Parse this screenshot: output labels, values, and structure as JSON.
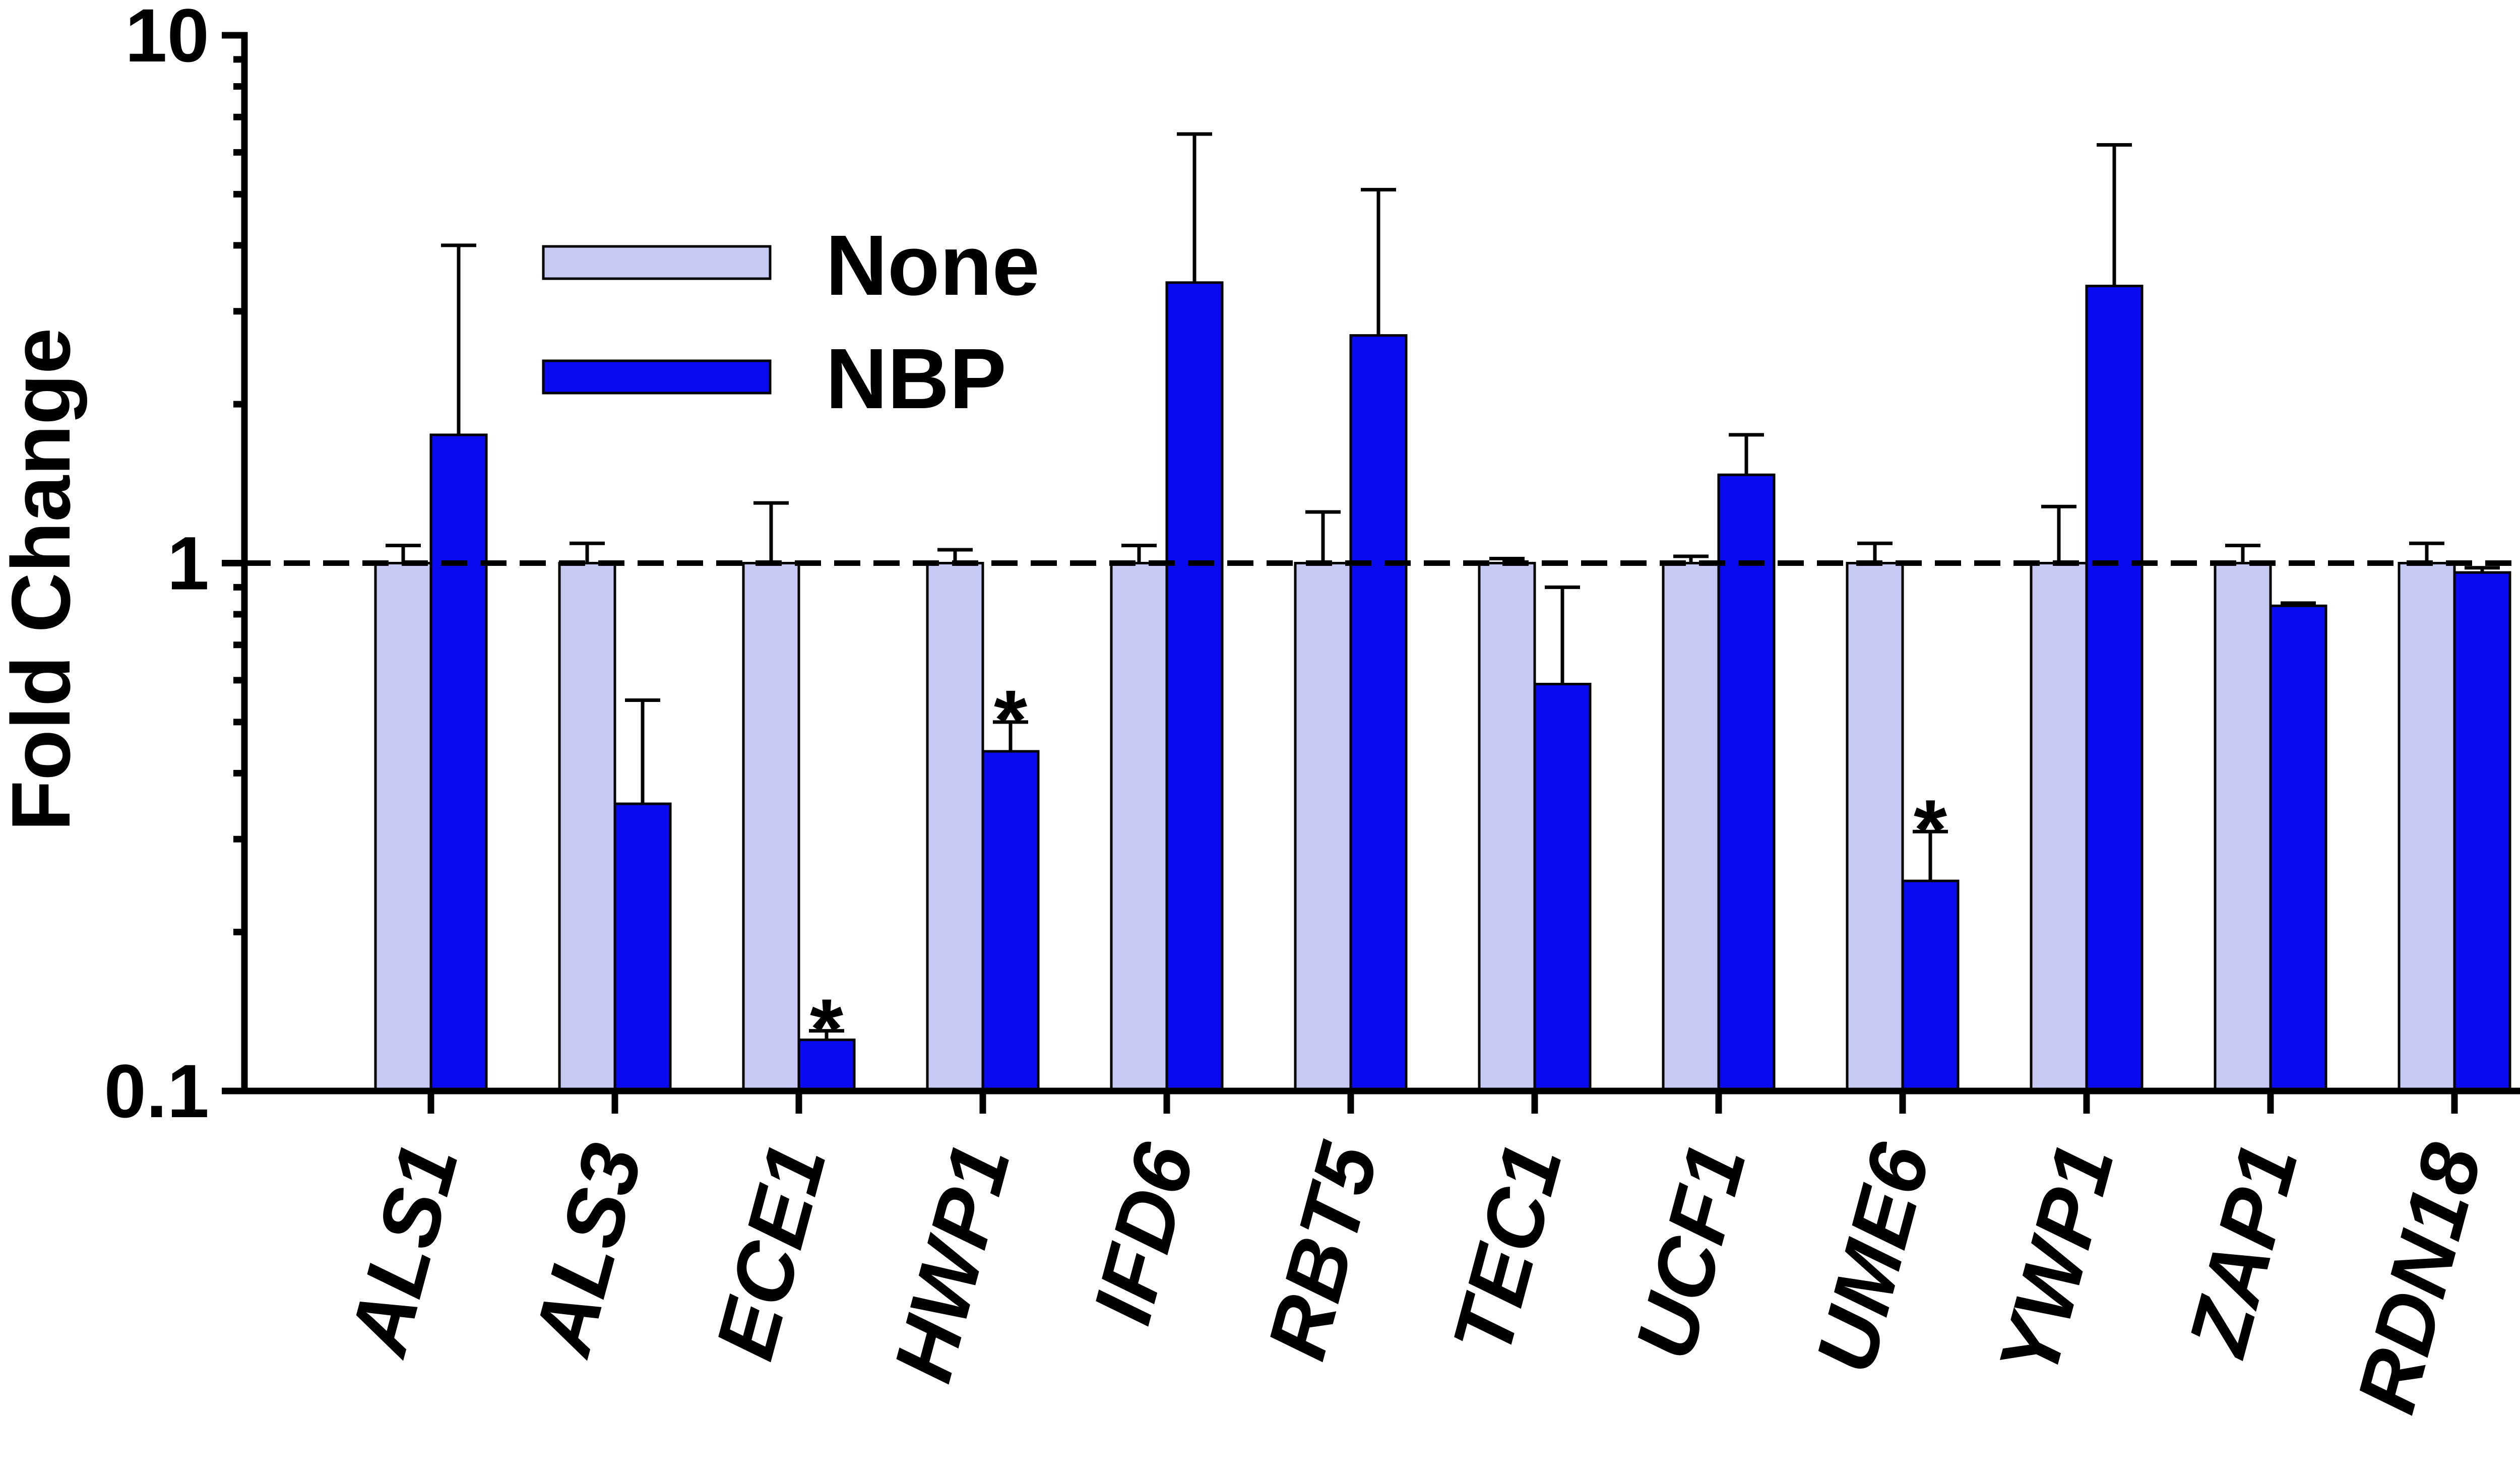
{
  "chart_data": {
    "type": "bar",
    "title": "",
    "xlabel": "",
    "ylabel": "Fold Change",
    "yscale": "log",
    "ylim": [
      0.1,
      10
    ],
    "yticks": [
      {
        "value": 0.1,
        "label": "0.1"
      },
      {
        "value": 1,
        "label": "1"
      },
      {
        "value": 10,
        "label": "10"
      }
    ],
    "reference_line": {
      "value": 1,
      "style": "dashed"
    },
    "categories": [
      "ALS1",
      "ALS3",
      "ECE1",
      "HWP1",
      "IFD6",
      "RBT5",
      "TEC1",
      "UCF1",
      "UME6",
      "YWP1",
      "ZAP1",
      "RDN18"
    ],
    "series": [
      {
        "name": "None",
        "color": "#C7C9F5",
        "values": [
          1,
          1,
          1,
          1,
          1,
          1,
          1,
          1,
          1,
          1,
          1,
          1
        ],
        "error_upper": [
          1.08,
          1.09,
          1.3,
          1.06,
          1.08,
          1.25,
          1.02,
          1.03,
          1.09,
          1.28,
          1.08,
          1.09
        ]
      },
      {
        "name": "NBP",
        "color": "#0A0AF0",
        "values": [
          1.75,
          0.35,
          0.125,
          0.44,
          3.4,
          2.7,
          0.59,
          1.47,
          0.25,
          3.35,
          0.83,
          0.96
        ],
        "error_upper": [
          4.0,
          0.55,
          0.13,
          0.5,
          6.5,
          5.1,
          0.9,
          1.75,
          0.31,
          6.2,
          0.84,
          0.98
        ]
      }
    ],
    "significance": [
      "",
      "",
      "*",
      "*",
      "",
      "",
      "",
      "",
      "*",
      "",
      "",
      ""
    ],
    "legend": {
      "position": "top-left",
      "entries": [
        "None",
        "NBP"
      ]
    },
    "grid": false
  }
}
